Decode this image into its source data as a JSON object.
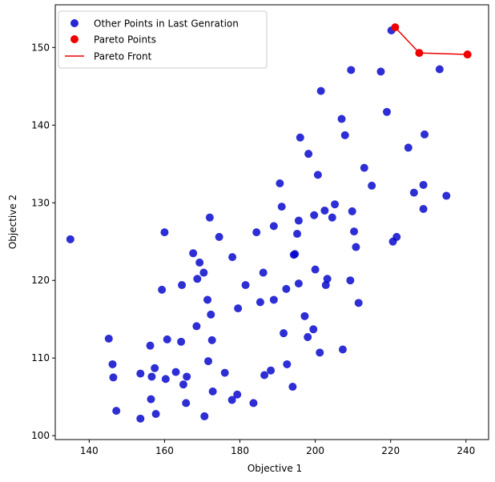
{
  "chart_data": {
    "type": "scatter",
    "xlabel": "Objective 1",
    "ylabel": "Objective 2",
    "xlim": [
      131,
      246
    ],
    "ylim": [
      99.5,
      155.5
    ],
    "xticks": [
      140,
      160,
      180,
      200,
      220,
      240
    ],
    "yticks": [
      100,
      110,
      120,
      130,
      140,
      150
    ],
    "grid": false,
    "legend_position": "upper-left",
    "legend": [
      {
        "label": "Other Points in Last Genration",
        "kind": "marker",
        "color": "#0000cc"
      },
      {
        "label": "Pareto Points",
        "kind": "marker",
        "color": "#ee0000"
      },
      {
        "label": "Pareto Front",
        "kind": "line",
        "color": "#ee0000"
      }
    ],
    "series": [
      {
        "name": "Other Points in Last Genration",
        "kind": "scatter",
        "color": "#0000cc",
        "points": [
          [
            135.0,
            125.3
          ],
          [
            145.2,
            112.5
          ],
          [
            146.2,
            109.2
          ],
          [
            146.4,
            107.5
          ],
          [
            147.2,
            103.2
          ],
          [
            153.6,
            108.0
          ],
          [
            153.6,
            102.2
          ],
          [
            156.2,
            111.6
          ],
          [
            156.4,
            104.7
          ],
          [
            156.6,
            107.6
          ],
          [
            157.4,
            108.7
          ],
          [
            157.7,
            102.8
          ],
          [
            159.3,
            118.8
          ],
          [
            160.0,
            126.2
          ],
          [
            160.3,
            107.3
          ],
          [
            160.7,
            112.4
          ],
          [
            163.0,
            108.2
          ],
          [
            164.4,
            112.1
          ],
          [
            164.6,
            119.4
          ],
          [
            165.0,
            106.6
          ],
          [
            165.7,
            104.2
          ],
          [
            165.9,
            107.6
          ],
          [
            167.6,
            123.5
          ],
          [
            168.5,
            114.1
          ],
          [
            168.7,
            120.2
          ],
          [
            169.3,
            122.3
          ],
          [
            170.4,
            121.0
          ],
          [
            170.6,
            102.5
          ],
          [
            171.4,
            117.5
          ],
          [
            171.6,
            109.6
          ],
          [
            172.0,
            128.1
          ],
          [
            172.3,
            115.6
          ],
          [
            172.6,
            112.3
          ],
          [
            172.8,
            105.7
          ],
          [
            174.5,
            125.6
          ],
          [
            176.0,
            108.1
          ],
          [
            177.9,
            104.6
          ],
          [
            178.0,
            123.0
          ],
          [
            179.3,
            105.3
          ],
          [
            179.5,
            116.4
          ],
          [
            181.5,
            119.4
          ],
          [
            183.6,
            104.2
          ],
          [
            184.4,
            126.2
          ],
          [
            185.4,
            117.2
          ],
          [
            186.2,
            121.0
          ],
          [
            186.5,
            107.8
          ],
          [
            188.2,
            108.4
          ],
          [
            189.0,
            127.0
          ],
          [
            189.0,
            117.5
          ],
          [
            190.6,
            132.5
          ],
          [
            191.1,
            129.5
          ],
          [
            191.6,
            113.2
          ],
          [
            192.3,
            118.9
          ],
          [
            192.5,
            109.2
          ],
          [
            194.0,
            106.3
          ],
          [
            194.3,
            123.3
          ],
          [
            194.6,
            123.4
          ],
          [
            195.2,
            126.0
          ],
          [
            195.6,
            119.6
          ],
          [
            195.6,
            127.7
          ],
          [
            196.0,
            138.4
          ],
          [
            197.2,
            115.4
          ],
          [
            198.0,
            112.7
          ],
          [
            198.2,
            136.3
          ],
          [
            199.5,
            113.7
          ],
          [
            199.7,
            128.4
          ],
          [
            200.0,
            121.4
          ],
          [
            200.7,
            133.6
          ],
          [
            201.2,
            110.7
          ],
          [
            201.5,
            144.4
          ],
          [
            202.5,
            129.0
          ],
          [
            202.8,
            119.4
          ],
          [
            203.2,
            120.2
          ],
          [
            204.5,
            128.1
          ],
          [
            205.2,
            129.8
          ],
          [
            207.0,
            140.8
          ],
          [
            207.3,
            111.1
          ],
          [
            207.9,
            138.7
          ],
          [
            209.3,
            120.0
          ],
          [
            209.5,
            147.1
          ],
          [
            209.8,
            128.9
          ],
          [
            210.3,
            126.3
          ],
          [
            210.8,
            124.3
          ],
          [
            211.5,
            117.1
          ],
          [
            213.0,
            134.5
          ],
          [
            215.0,
            132.2
          ],
          [
            217.4,
            146.9
          ],
          [
            219.0,
            141.7
          ],
          [
            220.2,
            152.2
          ],
          [
            220.6,
            125.0
          ],
          [
            221.6,
            125.6
          ],
          [
            224.7,
            137.1
          ],
          [
            226.2,
            131.3
          ],
          [
            228.7,
            132.3
          ],
          [
            228.7,
            129.2
          ],
          [
            229.0,
            138.8
          ],
          [
            233.0,
            147.2
          ],
          [
            234.8,
            130.9
          ]
        ]
      },
      {
        "name": "Pareto Points",
        "kind": "scatter",
        "color": "#ee0000",
        "points": [
          [
            221.2,
            152.6
          ],
          [
            227.6,
            149.3
          ],
          [
            240.4,
            149.1
          ]
        ]
      },
      {
        "name": "Pareto Front",
        "kind": "line",
        "color": "#ee0000",
        "points": [
          [
            221.2,
            152.6
          ],
          [
            227.6,
            149.3
          ],
          [
            240.4,
            149.1
          ]
        ]
      }
    ]
  }
}
